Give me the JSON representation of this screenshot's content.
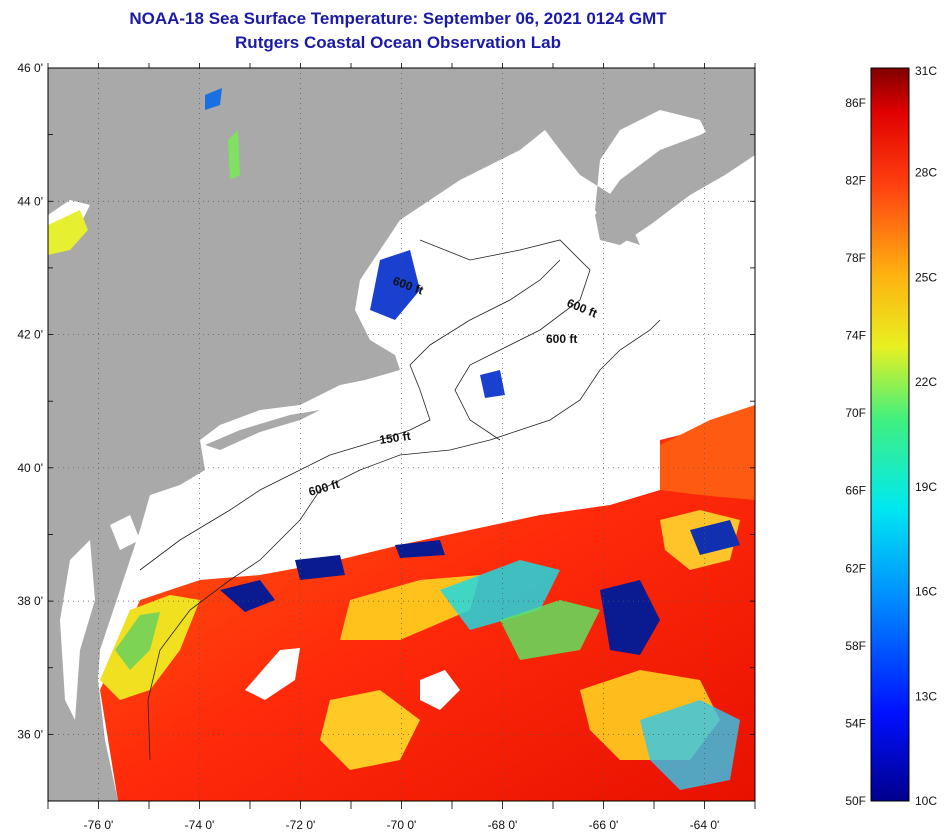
{
  "title": {
    "line1": "NOAA-18 Sea Surface Temperature:  September 06, 2021 0124 GMT",
    "line2": "Rutgers Coastal Ocean Observation Lab"
  },
  "map": {
    "lat_labels": [
      "46 0'",
      "44 0'",
      "42 0'",
      "40 0'",
      "38 0'",
      "36 0'"
    ],
    "lon_labels": [
      "-76 0'",
      "-74 0'",
      "-72 0'",
      "-70 0'",
      "-68 0'",
      "-66 0'",
      "-64 0'"
    ],
    "lat_range": [
      35,
      46
    ],
    "lon_range": [
      -77,
      -63
    ],
    "lat_ticks": [
      46,
      44,
      42,
      40,
      38,
      36
    ],
    "lon_ticks": [
      -76,
      -74,
      -72,
      -70,
      -68,
      -66,
      -64
    ],
    "contour_labels": [
      "600 ft",
      "600 ft",
      "600 ft",
      "150 ft",
      "600 ft"
    ],
    "colors": {
      "land": "#a9a9a9",
      "cloud": "#ffffff",
      "warm": "#ff3a10",
      "cool": "#0a1a90"
    }
  },
  "colorbar": {
    "f_labels": [
      "86F",
      "82F",
      "78F",
      "74F",
      "70F",
      "66F",
      "62F",
      "58F",
      "54F",
      "50F"
    ],
    "c_labels": [
      "31C",
      "28C",
      "25C",
      "22C",
      "19C",
      "16C",
      "13C",
      "10C"
    ],
    "c_values": [
      31,
      28,
      25,
      22,
      19,
      16,
      13,
      10
    ],
    "f_values": [
      86,
      82,
      78,
      74,
      70,
      66,
      62,
      58,
      54,
      50
    ],
    "range_c": [
      10,
      31
    ]
  }
}
